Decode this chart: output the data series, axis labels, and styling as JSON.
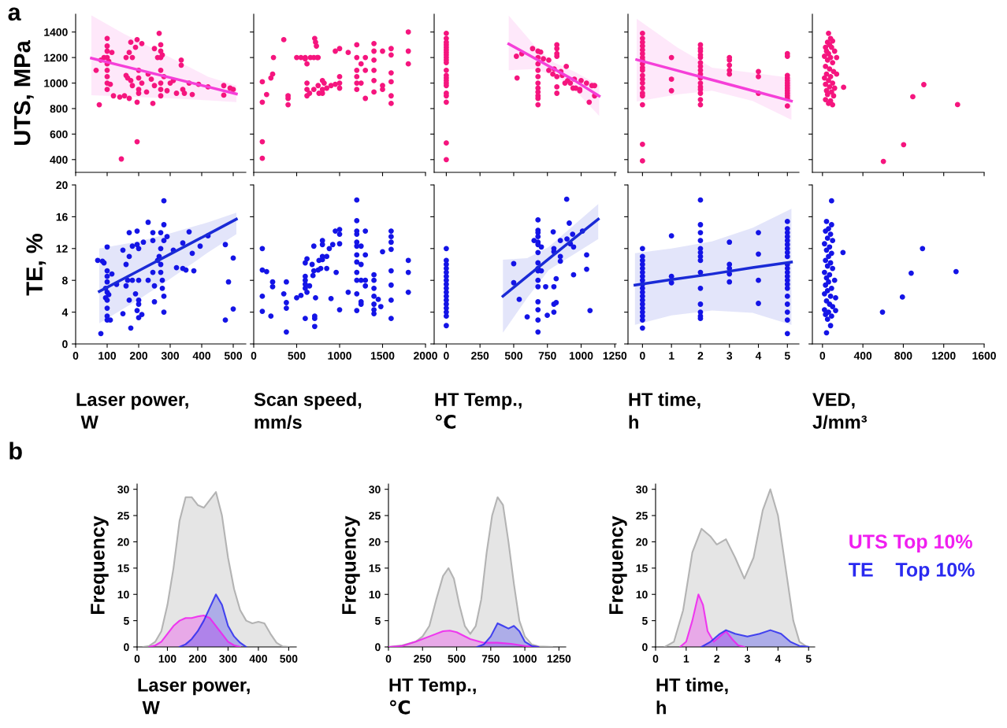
{
  "chart_data": [
    {
      "type": "scatter",
      "ylabel": "UTS, MPa",
      "annotations": [
        "a"
      ],
      "xlim": [
        0,
        540
      ],
      "xticks": [
        0,
        100,
        200,
        300,
        400,
        500
      ],
      "ylim": [
        300,
        1540
      ],
      "yticks": [
        400,
        600,
        800,
        1000,
        1200,
        1400
      ],
      "tick_labels": "y",
      "series": [
        {
          "color": "#f5157e",
          "marker": "circle",
          "x": [
            65,
            75,
            80,
            90,
            100,
            100,
            100,
            100,
            100,
            100,
            100,
            100,
            100,
            105,
            110,
            115,
            120,
            140,
            145,
            155,
            160,
            160,
            165,
            170,
            170,
            175,
            175,
            180,
            180,
            190,
            195,
            195,
            195,
            200,
            200,
            200,
            200,
            210,
            210,
            225,
            230,
            240,
            245,
            250,
            250,
            260,
            265,
            270,
            270,
            270,
            270,
            270,
            270,
            270,
            275,
            280,
            290,
            300,
            310,
            320,
            335,
            335,
            340,
            345,
            360,
            370,
            390,
            420,
            470,
            470,
            490,
            500
          ],
          "values": [
            1100,
            830,
            1180,
            1200,
            1350,
            1290,
            1250,
            1200,
            1150,
            1100,
            1050,
            1000,
            950,
            1170,
            990,
            1240,
            900,
            890,
            405,
            900,
            1200,
            1060,
            1040,
            1240,
            880,
            1320,
            1020,
            1200,
            980,
            1280,
            1340,
            850,
            540,
            1100,
            1040,
            950,
            920,
            1310,
            1000,
            930,
            1070,
            1030,
            840,
            1270,
            980,
            1200,
            1390,
            1250,
            1300,
            1200,
            1100,
            1000,
            950,
            900,
            1220,
            1050,
            940,
            1000,
            1020,
            920,
            1180,
            1140,
            950,
            920,
            1000,
            910,
            990,
            970,
            980,
            905,
            960,
            950
          ]
        },
        {
          "type": "line",
          "color": "#f53fd8",
          "x": [
            50,
            150,
            300,
            420,
            510
          ],
          "values": [
            1195,
            1134,
            1043,
            970,
            915
          ],
          "lower": [
            905,
            895,
            880,
            865,
            850
          ],
          "upper": [
            1530,
            1390,
            1200,
            1050,
            980
          ]
        }
      ]
    },
    {
      "type": "scatter",
      "xlim": [
        0,
        2000
      ],
      "xticks": [
        0,
        500,
        1000,
        1500,
        2000
      ],
      "ylim": [
        300,
        1540
      ],
      "yticks": [
        400,
        600,
        800,
        1000,
        1200,
        1400
      ],
      "tick_labels": false,
      "series": [
        {
          "color": "#f5157e",
          "marker": "circle",
          "x": [
            100,
            100,
            100,
            100,
            150,
            200,
            220,
            230,
            350,
            400,
            400,
            400,
            500,
            550,
            600,
            600,
            620,
            620,
            620,
            620,
            650,
            660,
            700,
            700,
            710,
            720,
            730,
            740,
            750,
            750,
            760,
            800,
            800,
            800,
            820,
            850,
            900,
            950,
            1000,
            1000,
            1000,
            950,
            1000,
            1100,
            1200,
            1200,
            1200,
            1200,
            1200,
            1200,
            1250,
            1250,
            1300,
            1300,
            1300,
            1400,
            1400,
            1400,
            1400,
            1400,
            1400,
            1500,
            1500,
            1500,
            1600,
            1600,
            1600,
            1600,
            1600,
            1600,
            1800,
            1800,
            1800
          ],
          "values": [
            1010,
            850,
            540,
            410,
            910,
            1040,
            1070,
            1200,
            1340,
            900,
            880,
            830,
            1200,
            1200,
            1200,
            1190,
            1150,
            1000,
            950,
            900,
            920,
            1200,
            1200,
            950,
            1350,
            1320,
            1290,
            1200,
            1200,
            980,
            920,
            920,
            1020,
            950,
            1000,
            960,
            980,
            990,
            1000,
            1050,
            960,
            1250,
            1270,
            1240,
            1300,
            1200,
            1100,
            1050,
            1000,
            950,
            1150,
            1000,
            1200,
            1100,
            880,
            1310,
            1250,
            1180,
            1100,
            1020,
            930,
            1250,
            980,
            950,
            1270,
            1220,
            1080,
            1010,
            900,
            840,
            1400,
            1250,
            1150
          ]
        }
      ]
    },
    {
      "type": "scatter",
      "xlim": [
        -90,
        1260
      ],
      "xticks": [
        0,
        250,
        500,
        750,
        1000,
        1250
      ],
      "ylim": [
        300,
        1540
      ],
      "yticks": [
        400,
        600,
        800,
        1000,
        1200,
        1400
      ],
      "tick_labels": false,
      "series": [
        {
          "color": "#f5157e",
          "marker": "circle",
          "x": [
            0,
            0,
            0,
            0,
            0,
            0,
            0,
            0,
            0,
            0,
            0,
            0,
            0,
            0,
            0,
            0,
            0,
            0,
            0,
            0,
            0,
            0,
            520,
            525,
            560,
            640,
            680,
            680,
            680,
            680,
            680,
            680,
            680,
            680,
            680,
            680,
            680,
            700,
            720,
            760,
            760,
            790,
            800,
            820,
            820,
            820,
            820,
            820,
            820,
            820,
            850,
            860,
            880,
            890,
            900,
            920,
            940,
            950,
            960,
            990,
            990,
            1000,
            1040,
            1060,
            1080,
            1100,
            1100
          ],
          "values": [
            1390,
            1350,
            1320,
            1300,
            1280,
            1260,
            1240,
            1220,
            1200,
            1180,
            1160,
            1100,
            1060,
            1040,
            1020,
            1000,
            980,
            920,
            900,
            850,
            530,
            400,
            1210,
            1040,
            1230,
            1270,
            1250,
            1200,
            1150,
            1100,
            1050,
            1000,
            960,
            930,
            900,
            880,
            830,
            1243,
            1190,
            1180,
            1100,
            1070,
            1110,
            1300,
            1270,
            1230,
            1210,
            1050,
            970,
            920,
            1090,
            1060,
            1000,
            1130,
            1020,
            1000,
            960,
            1030,
            960,
            950,
            940,
            1020,
            1000,
            850,
            980,
            980,
            900
          ]
        },
        {
          "type": "line",
          "color": "#f53fd8",
          "x": [
            463,
            650,
            800,
            950,
            1134
          ],
          "values": [
            1307,
            1197,
            1110,
            1021,
            898
          ],
          "lower": [
            1100,
            1110,
            1060,
            950,
            743
          ],
          "upper": [
            1529,
            1300,
            1160,
            1090,
            981
          ]
        }
      ]
    },
    {
      "type": "scatter",
      "xlim": [
        -0.5,
        5.4
      ],
      "xticks": [
        0,
        1,
        2,
        3,
        4,
        5
      ],
      "ylim": [
        300,
        1540
      ],
      "yticks": [
        400,
        600,
        800,
        1000,
        1200,
        1400
      ],
      "tick_labels": false,
      "series": [
        {
          "color": "#f5157e",
          "marker": "circle",
          "x": [
            0,
            0,
            0,
            0,
            0,
            0,
            0,
            0,
            0,
            0,
            0,
            0,
            0,
            0,
            0,
            0,
            0,
            0,
            0,
            0,
            1,
            1,
            1,
            2,
            2,
            2,
            2,
            2,
            2,
            2,
            2,
            2,
            2,
            2,
            2,
            2,
            2,
            2,
            2,
            3,
            3,
            3,
            3,
            3,
            4,
            4,
            4,
            5,
            5,
            5,
            5,
            5,
            5,
            5,
            5,
            5,
            5,
            5,
            5,
            5
          ],
          "values": [
            1390,
            1350,
            1320,
            1290,
            1260,
            1230,
            1200,
            1180,
            1150,
            1120,
            1100,
            1060,
            1030,
            1000,
            960,
            920,
            900,
            830,
            520,
            390,
            1200,
            1030,
            940,
            1300,
            1270,
            1250,
            1220,
            1200,
            1160,
            1130,
            1100,
            1070,
            1040,
            1000,
            970,
            950,
            920,
            870,
            830,
            1200,
            1180,
            1140,
            1100,
            1070,
            1090,
            1050,
            920,
            1230,
            1210,
            1060,
            1040,
            1020,
            1000,
            980,
            960,
            940,
            920,
            900,
            880,
            820
          ]
        },
        {
          "type": "line",
          "color": "#f53fd8",
          "x": [
            -0.2,
            1.2,
            2.4,
            3.8,
            5.14
          ],
          "values": [
            1183,
            1098,
            1025,
            940,
            859
          ],
          "lower": [
            855,
            910,
            940,
            860,
            712
          ],
          "upper": [
            1505,
            1280,
            1120,
            1080,
            1040
          ]
        }
      ]
    },
    {
      "type": "scatter",
      "xlim": [
        -100,
        1600
      ],
      "xticks": [
        0,
        400,
        800,
        1200,
        1600
      ],
      "ylim": [
        300,
        1540
      ],
      "yticks": [
        400,
        600,
        800,
        1000,
        1200,
        1400
      ],
      "tick_labels": false,
      "series": [
        {
          "color": "#f5157e",
          "marker": "circle",
          "x": [
            60,
            80,
            50,
            100,
            70,
            30,
            90,
            40,
            120,
            60,
            20,
            80,
            140,
            50,
            100,
            30,
            70,
            110,
            40,
            140,
            80,
            20,
            60,
            100,
            30,
            70,
            120,
            40,
            90,
            50,
            110,
            30,
            80,
            60,
            100,
            209,
            1003,
            894,
            1337,
            803,
            603
          ],
          "values": [
            1390,
            1350,
            1320,
            1330,
            1300,
            1280,
            1280,
            1250,
            1250,
            1230,
            1210,
            1200,
            1200,
            1180,
            1160,
            1130,
            1110,
            1090,
            1070,
            1070,
            1050,
            1040,
            1020,
            1000,
            990,
            970,
            960,
            940,
            930,
            910,
            900,
            870,
            860,
            840,
            830,
            967,
            988,
            893,
            831,
            517,
            386
          ]
        }
      ]
    },
    {
      "type": "scatter",
      "ylabel": "TE, %",
      "xlabel": "Laser power,\n W",
      "xlim": [
        0,
        540
      ],
      "xticks": [
        0,
        100,
        200,
        300,
        400,
        500
      ],
      "ylim": [
        0,
        20
      ],
      "yticks": [
        0,
        4,
        8,
        12,
        16,
        20
      ],
      "series": [
        {
          "color": "#1414e6",
          "marker": "circle",
          "x": [
            70,
            80,
            85,
            90,
            95,
            95,
            100,
            100,
            100,
            100,
            100,
            100,
            100,
            100,
            100,
            105,
            110,
            115,
            130,
            150,
            150,
            160,
            160,
            165,
            170,
            170,
            170,
            175,
            180,
            180,
            190,
            195,
            195,
            195,
            200,
            200,
            200,
            200,
            200,
            210,
            215,
            230,
            230,
            245,
            245,
            245,
            250,
            250,
            260,
            265,
            270,
            270,
            270,
            270,
            275,
            275,
            280,
            280,
            280,
            280,
            280,
            290,
            310,
            320,
            340,
            340,
            350,
            360,
            370,
            375,
            395,
            420,
            475,
            475,
            485,
            500,
            500
          ],
          "values": [
            10.5,
            1.3,
            10.4,
            10.2,
            7.0,
            5.8,
            12.2,
            9.2,
            8.5,
            7.8,
            6.5,
            5.5,
            4.5,
            3.5,
            3.0,
            6.2,
            3.0,
            8.8,
            7.5,
            3.8,
            11.8,
            7.3,
            10.0,
            8.0,
            5.5,
            14.0,
            11.0,
            2.0,
            12.3,
            8.0,
            6.3,
            14.2,
            12.5,
            4.2,
            12.0,
            8.0,
            5.5,
            5.0,
            3.3,
            3.7,
            12.8,
            15.3,
            8.0,
            14.0,
            13.0,
            9.0,
            5.3,
            7.3,
            10.5,
            11.0,
            14.0,
            12.0,
            10.0,
            9.0,
            8.0,
            7.0,
            18.0,
            15.0,
            13.0,
            6.0,
            4.0,
            13.5,
            11.8,
            9.6,
            12.7,
            9.5,
            9.3,
            14.1,
            11.4,
            9.2,
            12.3,
            13.6,
            12.5,
            3.0,
            7.8,
            10.8,
            4.4
          ]
        },
        {
          "type": "line",
          "color": "#1a2ad6",
          "x": [
            75,
            200,
            300,
            420,
            510
          ],
          "values": [
            6.6,
            9.2,
            11.3,
            13.8,
            15.7
          ],
          "lower": [
            2.6,
            5.6,
            8.2,
            11.5,
            13.8
          ],
          "upper": [
            12.0,
            12.9,
            13.9,
            15.3,
            16.5
          ]
        }
      ]
    },
    {
      "type": "scatter",
      "xlabel": "Scan speed,\nmm/s",
      "xlim": [
        0,
        2000
      ],
      "xticks": [
        0,
        500,
        1000,
        1500,
        2000
      ],
      "ylim": [
        0,
        20
      ],
      "yticks": [
        0,
        4,
        8,
        12,
        16,
        20
      ],
      "tick_labels": "x",
      "series": [
        {
          "color": "#1414e6",
          "marker": "circle",
          "x": [
            100,
            100,
            100,
            100,
            150,
            200,
            220,
            220,
            350,
            380,
            380,
            380,
            380,
            500,
            550,
            600,
            600,
            600,
            600,
            600,
            600,
            620,
            620,
            650,
            680,
            690,
            700,
            700,
            710,
            710,
            710,
            720,
            750,
            760,
            780,
            800,
            800,
            800,
            800,
            850,
            850,
            880,
            900,
            920,
            950,
            960,
            1000,
            1000,
            1000,
            1000,
            1100,
            1200,
            1200,
            1200,
            1200,
            1200,
            1200,
            1200,
            1200,
            1200,
            1200,
            1200,
            1200,
            1250,
            1250,
            1250,
            1250,
            1250,
            1300,
            1300,
            1300,
            1300,
            1400,
            1400,
            1400,
            1400,
            1400,
            1400,
            1400,
            1450,
            1480,
            1500,
            1600,
            1600,
            1600,
            1600,
            1600,
            1600,
            1600,
            1600,
            1800,
            1800,
            1800
          ],
          "values": [
            12.0,
            9.3,
            6.0,
            4.1,
            9.1,
            3.5,
            7.8,
            7.2,
            6.3,
            7.8,
            5.2,
            4.5,
            1.5,
            5.8,
            6.1,
            8.5,
            8.0,
            7.5,
            7.0,
            10.2,
            3.2,
            10.7,
            6.5,
            7.3,
            10.0,
            8.6,
            12.3,
            9.2,
            3.5,
            3.2,
            2.2,
            5.8,
            9.3,
            10.5,
            9.5,
            13.0,
            12.5,
            11.0,
            10.6,
            11.0,
            9.5,
            12.0,
            5.7,
            12.5,
            14.2,
            9.0,
            14.4,
            13.8,
            12.6,
            4.3,
            6.5,
            18.1,
            15.5,
            14.2,
            13.8,
            12.8,
            12.3,
            11.2,
            10.3,
            9.0,
            8.0,
            6.3,
            4.2,
            12.3,
            10.0,
            8.0,
            5.3,
            5.0,
            14.2,
            11.2,
            8.0,
            7.3,
            8.7,
            8.0,
            7.0,
            6.0,
            5.0,
            4.3,
            3.8,
            5.6,
            4.7,
            11.6,
            14.2,
            13.5,
            12.8,
            11.9,
            9.2,
            7.4,
            5.5,
            3.2,
            10.5,
            9.0,
            6.5
          ]
        }
      ]
    },
    {
      "type": "scatter",
      "xlabel": "HT Temp.,\n℃",
      "xlim": [
        -90,
        1260
      ],
      "xticks": [
        0,
        250,
        500,
        750,
        1000,
        1250
      ],
      "ylim": [
        0,
        20
      ],
      "yticks": [
        0,
        4,
        8,
        12,
        16,
        20
      ],
      "tick_labels": "x",
      "series": [
        {
          "color": "#1414e6",
          "marker": "circle",
          "x": [
            0,
            0,
            0,
            0,
            0,
            0,
            0,
            0,
            0,
            0,
            0,
            0,
            0,
            0,
            0,
            0,
            0,
            500,
            500,
            541,
            600,
            680,
            680,
            680,
            680,
            680,
            680,
            680,
            680,
            680,
            680,
            680,
            680,
            680,
            680,
            680,
            680,
            651,
            705,
            705,
            737,
            749,
            798,
            798,
            798,
            793,
            798,
            798,
            815,
            815,
            846,
            846,
            846,
            893,
            895,
            912,
            920,
            937,
            944,
            944,
            1010,
            1041,
            1041,
            1066
          ],
          "values": [
            12.0,
            10.5,
            10.0,
            9.5,
            9.0,
            8.5,
            8.0,
            7.5,
            7.0,
            6.5,
            6.0,
            5.5,
            5.0,
            4.5,
            4.0,
            3.5,
            2.3,
            10.1,
            7.7,
            5.6,
            3.4,
            15.6,
            14.3,
            14.0,
            13.5,
            12.8,
            12.5,
            11.5,
            10.2,
            9.5,
            9.2,
            8.0,
            7.2,
            5.3,
            4.3,
            3.0,
            1.5,
            13.0,
            12.2,
            9.2,
            7.2,
            3.6,
            7.2,
            5.0,
            4.0,
            14.1,
            11.6,
            12.0,
            5.2,
            8.2,
            11.0,
            13.0,
            10.4,
            18.2,
            13.2,
            15.2,
            12.6,
            13.8,
            12.2,
            8.7,
            14.2,
            11.2,
            9.4,
            4.2
          ]
        },
        {
          "type": "line",
          "color": "#1a2ad6",
          "x": [
            420,
            600,
            760,
            950,
            1127
          ],
          "values": [
            6.0,
            8.5,
            10.7,
            13.3,
            15.7
          ],
          "lower": [
            1.4,
            5.8,
            9.3,
            11.3,
            13.2
          ],
          "upper": [
            10.6,
            10.8,
            12.2,
            15.0,
            17.6
          ]
        }
      ]
    },
    {
      "type": "scatter",
      "xlabel": "HT time,\nh",
      "xlim": [
        -0.5,
        5.4
      ],
      "xticks": [
        0,
        1,
        2,
        3,
        4,
        5
      ],
      "ylim": [
        0,
        20
      ],
      "yticks": [
        0,
        4,
        8,
        12,
        16,
        20
      ],
      "tick_labels": "x",
      "series": [
        {
          "color": "#1414e6",
          "marker": "circle",
          "x": [
            0,
            0,
            0,
            0,
            0,
            0,
            0,
            0,
            0,
            0,
            0,
            0,
            0,
            0,
            0,
            0,
            0,
            0,
            0,
            1,
            1,
            1,
            2,
            2,
            2,
            2,
            2,
            2,
            2,
            2,
            2,
            2,
            2,
            2,
            2,
            2,
            3,
            3,
            3,
            3,
            3,
            4,
            4,
            4,
            4,
            5,
            5,
            5,
            5,
            5,
            5,
            5,
            5,
            5,
            5,
            5,
            5,
            5,
            5,
            5,
            5,
            5,
            5,
            5,
            5,
            5
          ],
          "values": [
            12.0,
            11.0,
            10.5,
            10.0,
            9.5,
            9.0,
            8.5,
            8.0,
            7.5,
            7.0,
            6.5,
            6.0,
            5.5,
            5.0,
            4.5,
            4.0,
            3.5,
            3.0,
            2.0,
            13.6,
            8.5,
            7.7,
            18.1,
            15.0,
            14.0,
            13.0,
            12.0,
            11.5,
            11.0,
            10.5,
            9.0,
            7.0,
            5.0,
            4.0,
            3.5,
            3.2,
            12.8,
            10.0,
            9.5,
            8.8,
            7.8,
            14.0,
            11.3,
            8.0,
            5.1,
            15.4,
            14.5,
            14.0,
            13.5,
            13.0,
            12.5,
            12.0,
            11.5,
            11.0,
            10.0,
            9.5,
            9.0,
            8.5,
            8.0,
            7.5,
            7.0,
            6.0,
            5.0,
            4.0,
            3.0,
            1.3
          ]
        },
        {
          "type": "line",
          "color": "#1a2ad6",
          "x": [
            -0.26,
            1,
            2.4,
            3.8,
            5.14
          ],
          "values": [
            7.4,
            8.1,
            8.8,
            9.6,
            10.3
          ],
          "lower": [
            2.4,
            3.6,
            4.2,
            3.9,
            2.4
          ],
          "upper": [
            11.4,
            12.0,
            12.9,
            14.6,
            17.0
          ]
        }
      ]
    },
    {
      "type": "scatter",
      "xlabel": "VED,\nJ/mm³",
      "xlim": [
        -100,
        1600
      ],
      "xticks": [
        0,
        400,
        800,
        1200,
        1600
      ],
      "ylim": [
        0,
        20
      ],
      "yticks": [
        0,
        4,
        8,
        12,
        16,
        20
      ],
      "tick_labels": "x",
      "series": [
        {
          "color": "#1414e6",
          "marker": "circle",
          "x": [
            90,
            40,
            90,
            60,
            30,
            80,
            50,
            100,
            20,
            70,
            40,
            90,
            60,
            30,
            80,
            50,
            100,
            20,
            70,
            40,
            120,
            60,
            30,
            90,
            50,
            20,
            80,
            130,
            40,
            70,
            100,
            20,
            60,
            130,
            30,
            90,
            50,
            80,
            40,
            203,
            990,
            878,
            1322,
            791,
            594
          ],
          "values": [
            18.0,
            15.4,
            15.0,
            14.5,
            14.2,
            13.8,
            13.3,
            13.0,
            12.6,
            12.2,
            11.8,
            11.4,
            11.0,
            10.5,
            10.2,
            9.8,
            9.5,
            9.0,
            8.7,
            8.3,
            8.0,
            7.8,
            7.4,
            7.0,
            6.7,
            6.3,
            6.0,
            5.8,
            5.4,
            5.0,
            4.7,
            4.3,
            4.0,
            4.2,
            3.7,
            3.5,
            3.1,
            2.3,
            1.4,
            11.5,
            12.0,
            8.9,
            9.1,
            5.9,
            4.0
          ]
        }
      ]
    },
    {
      "type": "area",
      "ylabel": "Frequency",
      "xlabel": "Laser power,\n W",
      "annotations": [
        "b"
      ],
      "xlim": [
        0,
        525
      ],
      "xticks": [
        0,
        100,
        200,
        300,
        400,
        500
      ],
      "ylim": [
        0,
        31
      ],
      "yticks": [
        0,
        5,
        10,
        15,
        20,
        25,
        30
      ],
      "series": [
        {
          "color": "#a8a8a8",
          "x": [
            20,
            40,
            60,
            80,
            100,
            120,
            140,
            160,
            180,
            200,
            220,
            240,
            260,
            280,
            300,
            320,
            340,
            360,
            380,
            400,
            420,
            440,
            460,
            480,
            500
          ],
          "values": [
            0,
            0.2,
            1,
            3,
            8,
            15,
            24,
            28.5,
            28.5,
            27,
            26.5,
            28,
            29.5,
            25,
            17,
            11,
            7,
            5,
            4.5,
            4.8,
            4.5,
            2.5,
            0.8,
            0.1,
            0
          ]
        },
        {
          "color": "#f01ef0",
          "x": [
            40,
            60,
            80,
            100,
            120,
            140,
            160,
            180,
            200,
            220,
            240,
            260,
            280,
            300,
            320,
            340
          ],
          "values": [
            0,
            0.3,
            1,
            2.5,
            4,
            5,
            5.5,
            5.5,
            5.8,
            6,
            5.5,
            4,
            2.5,
            1,
            0.3,
            0
          ]
        },
        {
          "color": "#2a2af0",
          "x": [
            140,
            160,
            180,
            200,
            220,
            240,
            260,
            280,
            300,
            320,
            340,
            360
          ],
          "values": [
            0,
            0.5,
            1.5,
            3,
            5,
            7.5,
            10,
            8,
            4,
            2,
            0.8,
            0
          ]
        }
      ]
    },
    {
      "type": "area",
      "ylabel": "Frequency",
      "xlabel": "HT Temp.,\n℃",
      "xlim": [
        0,
        1300
      ],
      "xticks": [
        0,
        250,
        500,
        750,
        1000,
        1250
      ],
      "ylim": [
        0,
        31
      ],
      "yticks": [
        0,
        5,
        10,
        15,
        20,
        25,
        30
      ],
      "series": [
        {
          "color": "#a8a8a8",
          "x": [
            0,
            100,
            200,
            250,
            300,
            350,
            400,
            440,
            480,
            520,
            560,
            600,
            640,
            680,
            720,
            760,
            800,
            840,
            880,
            920,
            960,
            1000,
            1050,
            1100,
            1200
          ],
          "values": [
            0,
            0.3,
            1,
            2,
            4,
            9,
            13.5,
            15,
            13,
            8,
            4,
            2.5,
            4,
            9,
            18,
            25,
            28.5,
            27,
            20,
            12,
            5,
            2,
            0.5,
            0.1,
            0
          ]
        },
        {
          "color": "#f01ef0",
          "x": [
            0,
            100,
            200,
            300,
            400,
            450,
            500,
            600,
            700,
            800,
            900,
            1000,
            1100
          ],
          "values": [
            0,
            0.2,
            1,
            2,
            3,
            3.1,
            2.8,
            1.5,
            0.8,
            0.8,
            0.6,
            0.2,
            0
          ]
        },
        {
          "color": "#2a2af0",
          "x": [
            650,
            700,
            750,
            800,
            840,
            880,
            920,
            960,
            1000,
            1050,
            1100
          ],
          "values": [
            0,
            0.5,
            2,
            4.5,
            4,
            3.5,
            4,
            3,
            1,
            0.2,
            0
          ]
        }
      ]
    },
    {
      "type": "area",
      "ylabel": "Frequency",
      "xlabel": "HT time,\nh",
      "legend": "right",
      "xlim": [
        0,
        5.2
      ],
      "xticks": [
        0,
        1,
        2,
        3,
        4,
        5
      ],
      "ylim": [
        0,
        31
      ],
      "yticks": [
        0,
        5,
        10,
        15,
        20,
        25,
        30
      ],
      "series": [
        {
          "color": "#a8a8a8",
          "x": [
            0.3,
            0.6,
            0.9,
            1.2,
            1.5,
            1.8,
            2.0,
            2.3,
            2.6,
            2.9,
            3.2,
            3.5,
            3.75,
            4.0,
            4.3,
            4.5,
            4.7,
            4.9,
            5.0
          ],
          "values": [
            0,
            1,
            7,
            18,
            22.5,
            21,
            19.5,
            20.5,
            17,
            13,
            17,
            26,
            30,
            25,
            13,
            5,
            1,
            0.2,
            0
          ]
        },
        {
          "name": "UTS Top 10%",
          "color": "#f01ef0",
          "x": [
            0.8,
            1.0,
            1.2,
            1.4,
            1.55,
            1.7,
            1.9,
            2.1,
            2.3,
            2.5,
            2.7,
            2.9
          ],
          "values": [
            0,
            1,
            5,
            10,
            8,
            3,
            1,
            2,
            3,
            1.5,
            0.3,
            0
          ]
        },
        {
          "name": "TE    Top 10%",
          "color": "#2a2af0",
          "x": [
            1.5,
            1.8,
            2.1,
            2.3,
            2.6,
            3.0,
            3.4,
            3.75,
            4.1,
            4.4,
            4.7,
            5.0
          ],
          "values": [
            0,
            1,
            2.5,
            3.2,
            2.5,
            2,
            2.5,
            3.2,
            2.5,
            1,
            0.2,
            0
          ]
        }
      ]
    }
  ]
}
